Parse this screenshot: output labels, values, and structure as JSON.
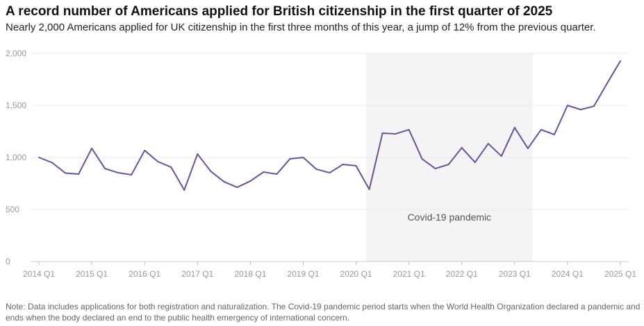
{
  "chart_data": {
    "type": "line",
    "title": "A record number of Americans applied for British citizenship in the first quarter of 2025",
    "subtitle": "Nearly 2,000 Americans applied for UK citizenship in the first three months of this year, a jump of 12% from the previous quarter.",
    "note": "Note: Data includes applications for both registration and naturalization. The Covid-19 pandemic period starts when the World Health Organization declared a pandemic and ends when the body declared an end to the public health emergency of international concern.",
    "xlabel": "",
    "ylabel": "",
    "ylim": [
      0,
      2000
    ],
    "y_ticks": [
      0,
      500,
      1000,
      1500,
      2000
    ],
    "y_tick_labels": [
      "0",
      "500",
      "1,000",
      "1,500",
      "2,000"
    ],
    "x_tick_labels": [
      "2014 Q1",
      "2015 Q1",
      "2016 Q1",
      "2017 Q1",
      "2018 Q1",
      "2019 Q1",
      "2020 Q1",
      "2021 Q1",
      "2022 Q1",
      "2023 Q1",
      "2024 Q1",
      "2025 Q1"
    ],
    "grid": "horizontal",
    "line_color": "#6c4f9e",
    "shade_color": "#f4f4f5",
    "annotation": {
      "label": "Covid-19 pandemic",
      "start": "2020-03-11",
      "end": "2023-05-05"
    },
    "x": [
      "2014 Q1",
      "2014 Q2",
      "2014 Q3",
      "2014 Q4",
      "2015 Q1",
      "2015 Q2",
      "2015 Q3",
      "2015 Q4",
      "2016 Q1",
      "2016 Q2",
      "2016 Q3",
      "2016 Q4",
      "2017 Q1",
      "2017 Q2",
      "2017 Q3",
      "2017 Q4",
      "2018 Q1",
      "2018 Q2",
      "2018 Q3",
      "2018 Q4",
      "2019 Q1",
      "2019 Q2",
      "2019 Q3",
      "2019 Q4",
      "2020 Q1",
      "2020 Q2",
      "2020 Q3",
      "2020 Q4",
      "2021 Q1",
      "2021 Q2",
      "2021 Q3",
      "2021 Q4",
      "2022 Q1",
      "2022 Q2",
      "2022 Q3",
      "2022 Q4",
      "2023 Q1",
      "2023 Q2",
      "2023 Q3",
      "2023 Q4",
      "2024 Q1",
      "2024 Q2",
      "2024 Q3",
      "2024 Q4",
      "2025 Q1"
    ],
    "values": [
      1000,
      950,
      850,
      840,
      1087,
      893,
      853,
      833,
      1067,
      960,
      907,
      687,
      1033,
      867,
      767,
      713,
      773,
      860,
      840,
      987,
      1000,
      887,
      853,
      933,
      920,
      693,
      1233,
      1227,
      1267,
      985,
      893,
      933,
      1093,
      953,
      1133,
      1013,
      1287,
      1087,
      1267,
      1220,
      1500,
      1460,
      1493,
      1713,
      1927
    ]
  }
}
